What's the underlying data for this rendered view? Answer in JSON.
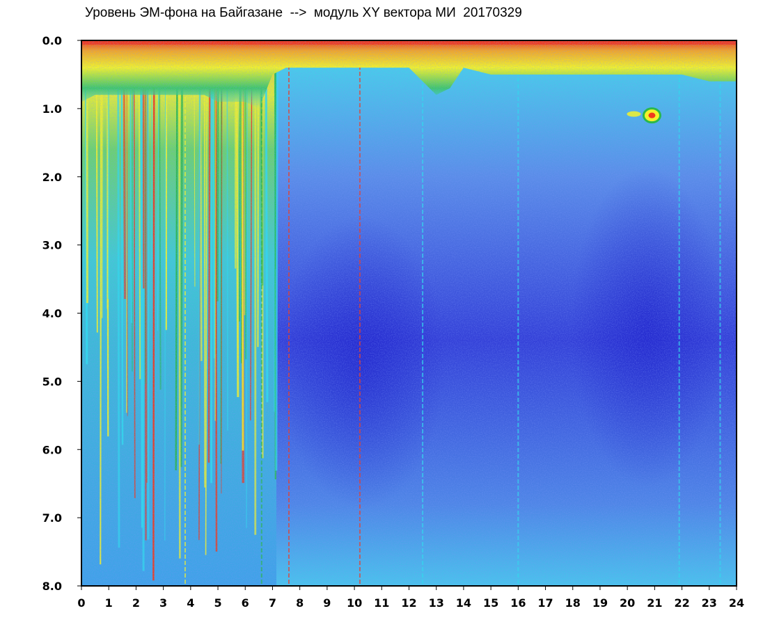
{
  "chart_data": {
    "type": "heatmap",
    "title": "Уровень ЭМ-фона на Байгазане  -->  модуль XY вектора МИ  20170329",
    "xlabel": "",
    "ylabel": "",
    "xlim": [
      0,
      24
    ],
    "ylim": [
      8.0,
      0.0
    ],
    "x_ticks": [
      "0",
      "1",
      "2",
      "3",
      "4",
      "5",
      "6",
      "7",
      "8",
      "9",
      "10",
      "11",
      "12",
      "13",
      "14",
      "15",
      "16",
      "17",
      "18",
      "19",
      "20",
      "21",
      "22",
      "23",
      "24"
    ],
    "y_ticks": [
      "0.0",
      "1.0",
      "2.0",
      "3.0",
      "4.0",
      "5.0",
      "6.0",
      "7.0",
      "8.0"
    ],
    "grid": false,
    "colormap": [
      "#1a1ad8",
      "#4a63e6",
      "#7fa6ee",
      "#2fdcec",
      "#2bb84a",
      "#f2f22a",
      "#ef3a1e"
    ],
    "intensity_profile": {
      "x": [
        0,
        0.5,
        1,
        1.5,
        2,
        2.5,
        3,
        3.5,
        4,
        4.5,
        5,
        5.5,
        6,
        6.5,
        7,
        7.5,
        8,
        9,
        10,
        11,
        12,
        12.5,
        13,
        13.5,
        14,
        15,
        16,
        17,
        18,
        19,
        20,
        21,
        22,
        23,
        24
      ],
      "low_band_upper_y": [
        0.9,
        0.8,
        0.8,
        0.8,
        0.8,
        0.8,
        0.8,
        0.8,
        0.8,
        0.8,
        0.9,
        0.9,
        0.9,
        1.0,
        0.5,
        0.4,
        0.4,
        0.4,
        0.4,
        0.4,
        0.4,
        0.6,
        0.8,
        0.7,
        0.4,
        0.5,
        0.5,
        0.5,
        0.5,
        0.5,
        0.5,
        0.5,
        0.5,
        0.6,
        0.6
      ]
    },
    "annotations": [
      {
        "label": "",
        "x": 20.9,
        "y": 1.1
      }
    ]
  }
}
